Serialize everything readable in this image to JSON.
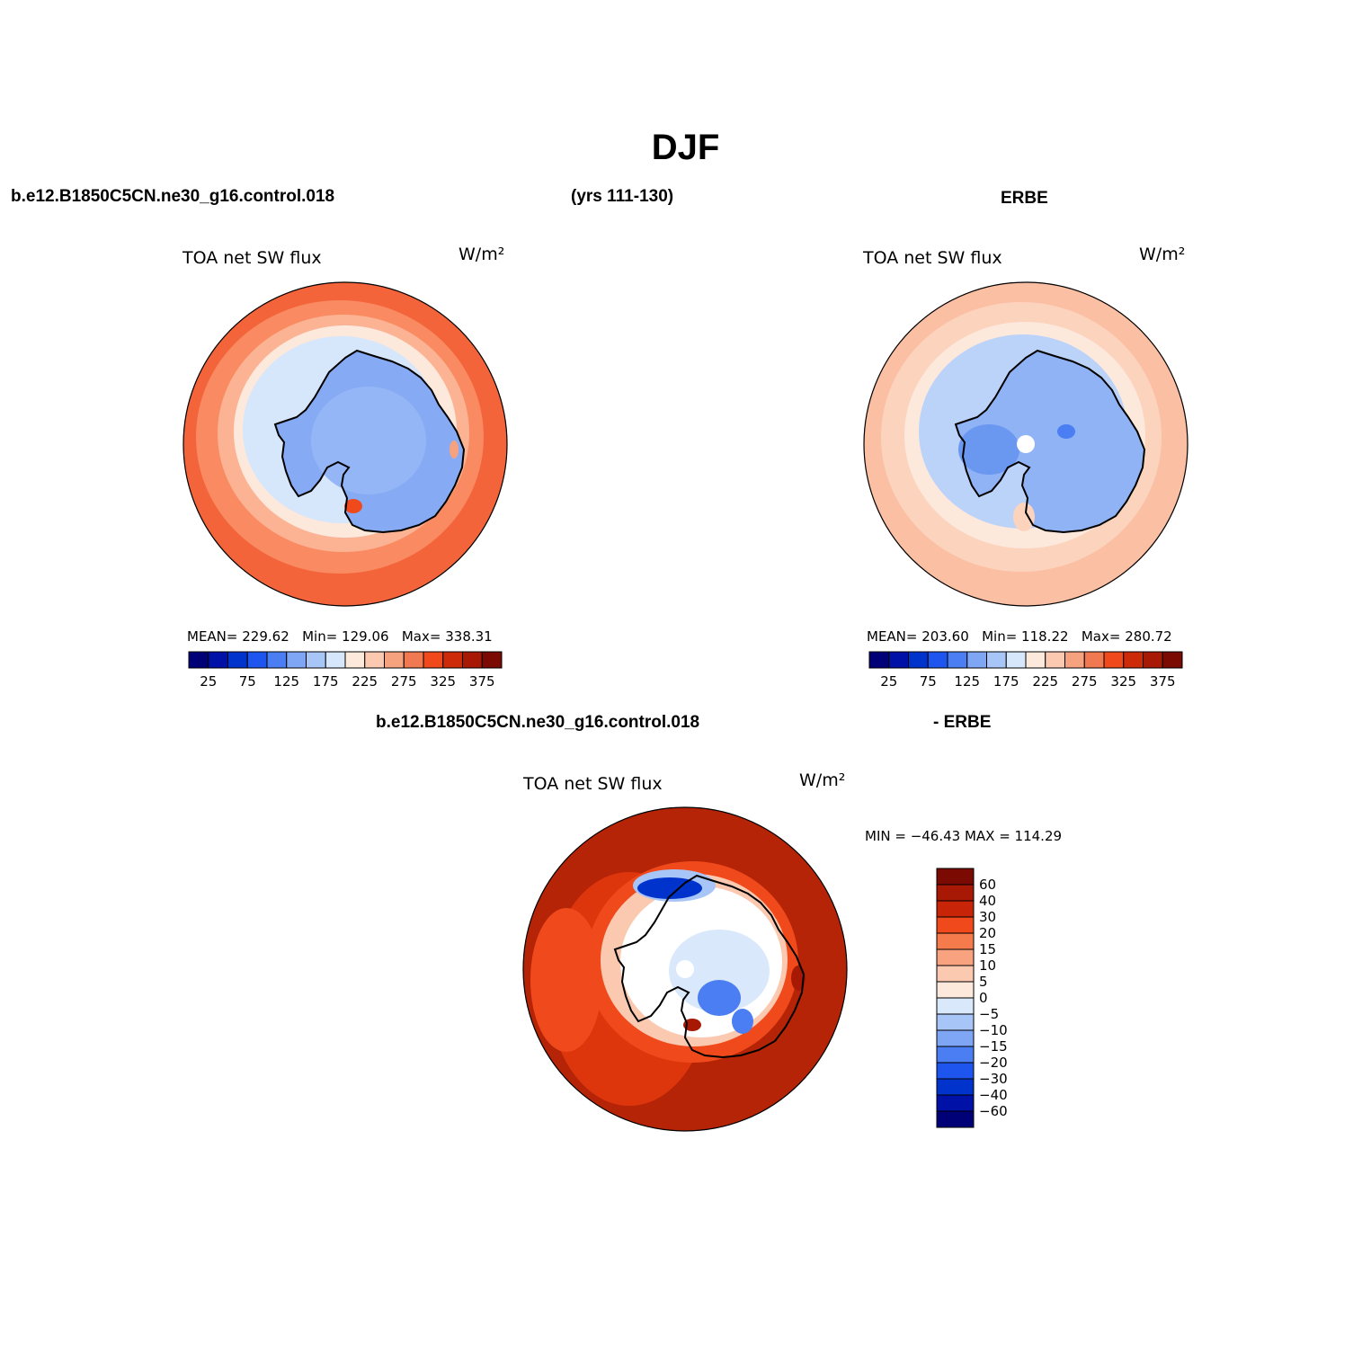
{
  "main_title": "DJF",
  "header": {
    "case_name": "b.e12.B1850C5CN.ne30_g16.control.018",
    "years": "(yrs 111-130)",
    "obs_name": "ERBE"
  },
  "diff_header": {
    "case_name": "b.e12.B1850C5CN.ne30_g16.control.018",
    "obs_name": "- ERBE"
  },
  "panels": [
    {
      "variable": "TOA net SW flux",
      "units": "W/m²",
      "stats": {
        "mean_label": "MEAN=",
        "mean": "229.62",
        "min_label": "Min=",
        "min": "129.06",
        "max_label": "Max=",
        "max": "338.31"
      }
    },
    {
      "variable": "TOA net SW flux",
      "units": "W/m²",
      "stats": {
        "mean_label": "MEAN=",
        "mean": "203.60",
        "min_label": "Min=",
        "min": "118.22",
        "max_label": "Max=",
        "max": "280.72"
      }
    },
    {
      "variable": "TOA net SW flux",
      "units": "W/m²",
      "stats_text": "MIN = −46.43 MAX = 114.29"
    }
  ],
  "horizontal_colorbar": {
    "colors": [
      "#000077",
      "#0011a8",
      "#0033cc",
      "#1e55ee",
      "#4a7ef2",
      "#7ea6f5",
      "#a8c5f8",
      "#d6e6fb",
      "#fde8dc",
      "#fbc9b0",
      "#f6a27f",
      "#f07951",
      "#f04a1c",
      "#cd2a0a",
      "#a81905",
      "#7a0a02"
    ],
    "labels": [
      "25",
      "75",
      "125",
      "175",
      "225",
      "275",
      "325",
      "375"
    ]
  },
  "vertical_colorbar": {
    "colors": [
      "#7a0a02",
      "#a81905",
      "#c82508",
      "#f04a1c",
      "#f57a4c",
      "#f8a27f",
      "#fbc9b0",
      "#fde8dc",
      "#d9e8fb",
      "#a8c5f8",
      "#7ea6f5",
      "#4a7ef2",
      "#1e55ee",
      "#0033cc",
      "#0011a8",
      "#000077"
    ],
    "labels": [
      "60",
      "40",
      "30",
      "20",
      "15",
      "10",
      "5",
      "0",
      "−5",
      "−10",
      "−15",
      "−20",
      "−30",
      "−40",
      "−60"
    ]
  },
  "map_colors": {
    "model": {
      "outer": "#f3643a",
      "mid1": "#f98a61",
      "mid2": "#fbb393",
      "mid3": "#fde8dc",
      "ice": "#d6e6fb",
      "land": "#86abf4",
      "inner": "#94b6f6"
    },
    "obs": {
      "outer": "#fbbfa3",
      "mid1": "#fcd3bd",
      "mid2": "#fde8dc",
      "ice": "#bcd3f9",
      "land": "#8fb3f5",
      "inner": "#6a97f0",
      "pole": "#ffffff"
    },
    "diff": {
      "outer": "#b62408",
      "mid1": "#dd360d",
      "mid2": "#f04a1c",
      "mid3": "#fbc9b0",
      "light": "#ffffff",
      "blue": "#a8c5f8",
      "blue2": "#4a7ef2",
      "deep": "#0033cc",
      "pole": "#ffffff"
    }
  }
}
